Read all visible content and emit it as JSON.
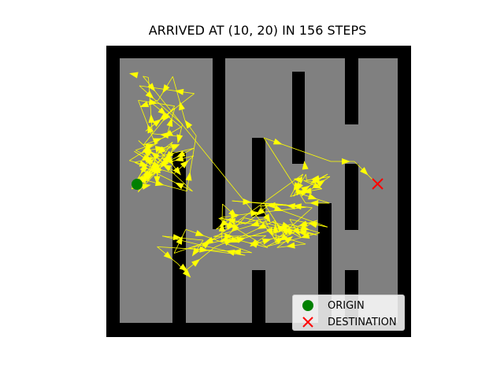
{
  "title": "ARRIVED AT (10, 20) IN 156 STEPS",
  "colors": {
    "wall": "#000000",
    "floor": "#808080",
    "path": "#ffff00",
    "origin": "#008000",
    "destination": "#ff0000"
  },
  "legend": {
    "origin_label": "ORIGIN",
    "destination_label": "DESTINATION"
  },
  "markers": {
    "origin_icon": "green-circle",
    "destination_icon": "red-x"
  }
}
